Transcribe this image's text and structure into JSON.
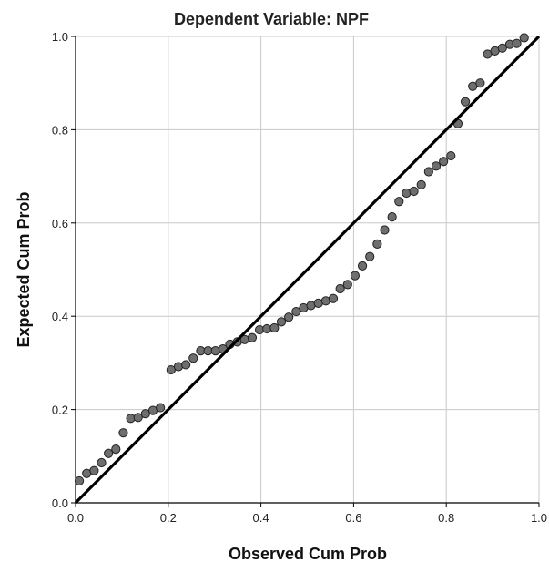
{
  "chart_data": {
    "type": "scatter",
    "title": "Dependent Variable: NPF",
    "xlabel": "Observed Cum Prob",
    "ylabel": "Expected Cum Prob",
    "xlim": [
      0.0,
      1.0
    ],
    "ylim": [
      0.0,
      1.0
    ],
    "xticks": [
      "0.0",
      "0.2",
      "0.4",
      "0.6",
      "0.8",
      "1.0"
    ],
    "yticks": [
      "0.0",
      "0.2",
      "0.4",
      "0.6",
      "0.8",
      "1.0"
    ],
    "grid": true,
    "reference_line": {
      "from": [
        0.0,
        0.0
      ],
      "to": [
        1.0,
        1.0
      ]
    },
    "series": [
      {
        "points": [
          [
            0.008,
            0.047
          ],
          [
            0.024,
            0.063
          ],
          [
            0.04,
            0.069
          ],
          [
            0.056,
            0.086
          ],
          [
            0.071,
            0.106
          ],
          [
            0.087,
            0.115
          ],
          [
            0.103,
            0.15
          ],
          [
            0.119,
            0.181
          ],
          [
            0.135,
            0.183
          ],
          [
            0.151,
            0.191
          ],
          [
            0.167,
            0.198
          ],
          [
            0.183,
            0.204
          ],
          [
            0.206,
            0.285
          ],
          [
            0.222,
            0.292
          ],
          [
            0.238,
            0.296
          ],
          [
            0.254,
            0.31
          ],
          [
            0.27,
            0.326
          ],
          [
            0.286,
            0.326
          ],
          [
            0.302,
            0.326
          ],
          [
            0.318,
            0.33
          ],
          [
            0.333,
            0.34
          ],
          [
            0.349,
            0.345
          ],
          [
            0.365,
            0.35
          ],
          [
            0.381,
            0.354
          ],
          [
            0.397,
            0.371
          ],
          [
            0.413,
            0.373
          ],
          [
            0.429,
            0.375
          ],
          [
            0.444,
            0.388
          ],
          [
            0.46,
            0.398
          ],
          [
            0.476,
            0.41
          ],
          [
            0.492,
            0.418
          ],
          [
            0.508,
            0.423
          ],
          [
            0.524,
            0.428
          ],
          [
            0.54,
            0.433
          ],
          [
            0.556,
            0.438
          ],
          [
            0.571,
            0.459
          ],
          [
            0.587,
            0.468
          ],
          [
            0.603,
            0.487
          ],
          [
            0.619,
            0.508
          ],
          [
            0.635,
            0.528
          ],
          [
            0.651,
            0.555
          ],
          [
            0.667,
            0.585
          ],
          [
            0.683,
            0.613
          ],
          [
            0.698,
            0.646
          ],
          [
            0.714,
            0.664
          ],
          [
            0.73,
            0.668
          ],
          [
            0.746,
            0.682
          ],
          [
            0.762,
            0.71
          ],
          [
            0.778,
            0.722
          ],
          [
            0.794,
            0.732
          ],
          [
            0.81,
            0.744
          ],
          [
            0.825,
            0.813
          ],
          [
            0.841,
            0.86
          ],
          [
            0.857,
            0.893
          ],
          [
            0.873,
            0.9
          ],
          [
            0.889,
            0.962
          ],
          [
            0.905,
            0.969
          ],
          [
            0.921,
            0.975
          ],
          [
            0.937,
            0.983
          ],
          [
            0.952,
            0.985
          ],
          [
            0.968,
            0.997
          ]
        ]
      }
    ]
  },
  "colors": {
    "marker_fill": "#6e6e6e",
    "marker_stroke": "#222222",
    "grid": "#c8c8c8",
    "reference_line": "#000000",
    "axis": "#000000"
  }
}
